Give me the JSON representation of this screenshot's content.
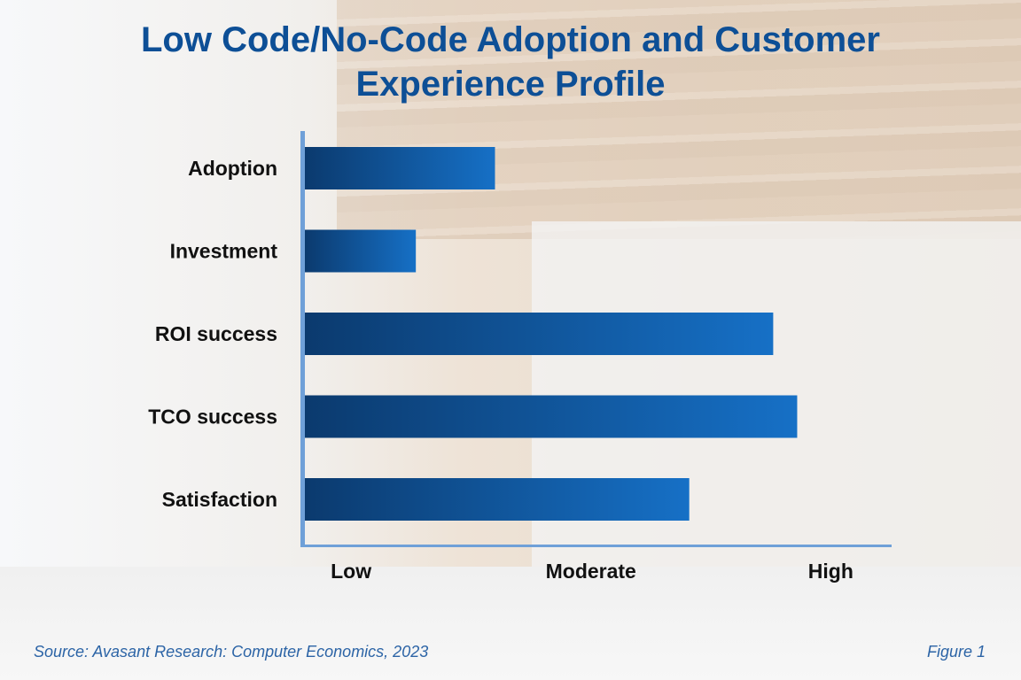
{
  "title_line1": "Low Code/No-Code Adoption and Customer",
  "title_line2": "Experience Profile",
  "source": "Source: Avasant Research: Computer Economics, 2023",
  "figure_label": "Figure 1",
  "chart_data": {
    "type": "bar",
    "orientation": "horizontal",
    "title": "Low Code/No-Code Adoption and Customer Experience Profile",
    "categories": [
      "Adoption",
      "Investment",
      "ROI success",
      "TCO success",
      "Satisfaction"
    ],
    "values": [
      1.6,
      1.27,
      2.76,
      2.86,
      2.41
    ],
    "x_tick_labels": [
      "Low",
      "Moderate",
      "High"
    ],
    "x_tick_values": [
      1,
      2,
      3
    ],
    "xlim": [
      0.8,
      3.25
    ],
    "grid": false,
    "bar_color_start": "#0b3a6e",
    "bar_color_end": "#1670c6",
    "axis_color": "#6fa0d8",
    "title_color": "#0d4f96"
  }
}
